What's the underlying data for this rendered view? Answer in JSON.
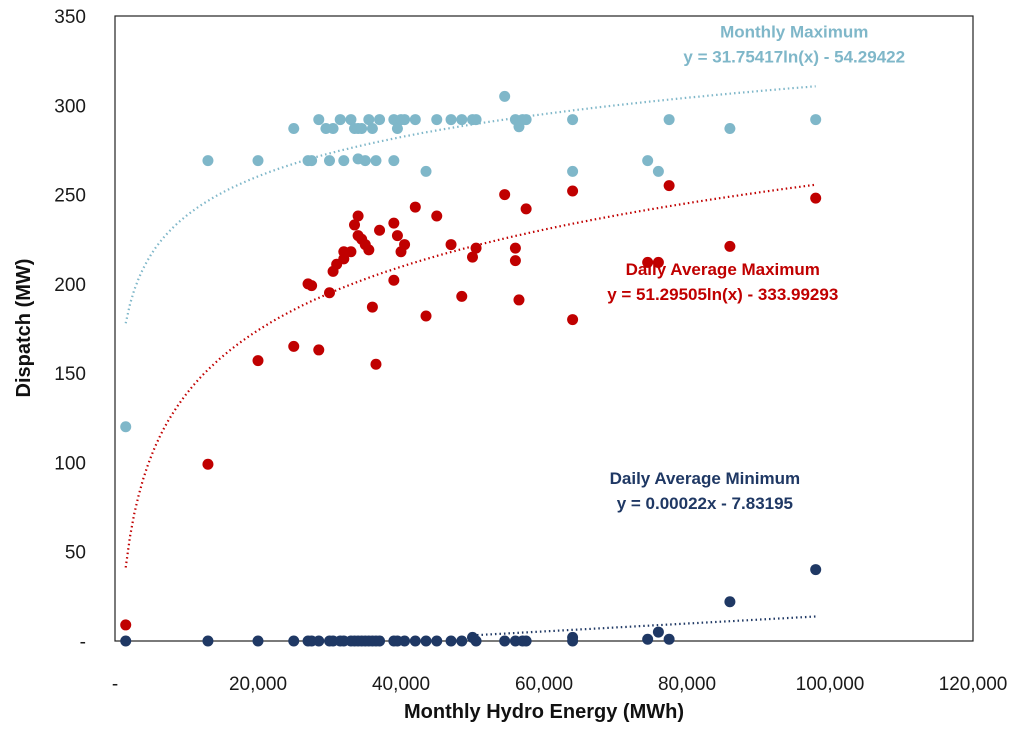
{
  "chart_data": {
    "type": "scatter",
    "xlabel": "Monthly Hydro Energy (MWh)",
    "ylabel": "Dispatch (MW)",
    "xlim": [
      0,
      120000
    ],
    "ylim": [
      0,
      350
    ],
    "x_ticks": [
      {
        "value": 0,
        "label": "-"
      },
      {
        "value": 20000,
        "label": "20,000"
      },
      {
        "value": 40000,
        "label": "40,000"
      },
      {
        "value": 60000,
        "label": "60,000"
      },
      {
        "value": 80000,
        "label": "80,000"
      },
      {
        "value": 100000,
        "label": "100,000"
      },
      {
        "value": 120000,
        "label": "120,000"
      }
    ],
    "y_ticks": [
      {
        "value": 0,
        "label": "-"
      },
      {
        "value": 50,
        "label": "50"
      },
      {
        "value": 100,
        "label": "100"
      },
      {
        "value": 150,
        "label": "150"
      },
      {
        "value": 200,
        "label": "200"
      },
      {
        "value": 250,
        "label": "250"
      },
      {
        "value": 300,
        "label": "300"
      },
      {
        "value": 350,
        "label": "350"
      }
    ],
    "grid": false,
    "legend": "none",
    "series": [
      {
        "color": "#7fb7c9",
        "points": [
          [
            1500,
            120
          ],
          [
            13000,
            269
          ],
          [
            20000,
            269
          ],
          [
            25000,
            287
          ],
          [
            27000,
            269
          ],
          [
            27500,
            269
          ],
          [
            28500,
            292
          ],
          [
            29500,
            287
          ],
          [
            30000,
            269
          ],
          [
            30500,
            287
          ],
          [
            31500,
            292
          ],
          [
            32000,
            269
          ],
          [
            33000,
            292
          ],
          [
            33500,
            287
          ],
          [
            34000,
            270
          ],
          [
            34000,
            287
          ],
          [
            34500,
            287
          ],
          [
            35000,
            269
          ],
          [
            35500,
            292
          ],
          [
            36000,
            287
          ],
          [
            36500,
            269
          ],
          [
            37000,
            292
          ],
          [
            39000,
            269
          ],
          [
            39000,
            292
          ],
          [
            39500,
            287
          ],
          [
            40000,
            292
          ],
          [
            40500,
            292
          ],
          [
            42000,
            292
          ],
          [
            43500,
            263
          ],
          [
            45000,
            292
          ],
          [
            47000,
            292
          ],
          [
            48500,
            292
          ],
          [
            50000,
            292
          ],
          [
            50500,
            292
          ],
          [
            54500,
            305
          ],
          [
            56000,
            292
          ],
          [
            56500,
            288
          ],
          [
            57000,
            292
          ],
          [
            57500,
            292
          ],
          [
            64000,
            263
          ],
          [
            64000,
            292
          ],
          [
            74500,
            269
          ],
          [
            76000,
            263
          ],
          [
            77500,
            292
          ],
          [
            86000,
            287
          ],
          [
            98000,
            292
          ]
        ],
        "trendline": {
          "type": "log",
          "a": 31.75417,
          "b": -54.29422,
          "x_from": 1500,
          "x_to": 98000
        },
        "annotation": {
          "label": "Monthly Maximum",
          "equation": "y = 31.75417ln(x) - 54.29422",
          "x": 95000,
          "y": 338
        }
      },
      {
        "color": "#c00000",
        "points": [
          [
            1500,
            9
          ],
          [
            13000,
            99
          ],
          [
            20000,
            157
          ],
          [
            25000,
            165
          ],
          [
            27000,
            200
          ],
          [
            27500,
            199
          ],
          [
            28500,
            163
          ],
          [
            30000,
            195
          ],
          [
            30500,
            207
          ],
          [
            31000,
            211
          ],
          [
            32000,
            218
          ],
          [
            32000,
            214
          ],
          [
            33000,
            218
          ],
          [
            33500,
            233
          ],
          [
            34000,
            227
          ],
          [
            34000,
            238
          ],
          [
            34500,
            225
          ],
          [
            35500,
            219
          ],
          [
            35000,
            222
          ],
          [
            36000,
            187
          ],
          [
            36500,
            155
          ],
          [
            37000,
            230
          ],
          [
            39000,
            202
          ],
          [
            39000,
            234
          ],
          [
            39500,
            227
          ],
          [
            40000,
            218
          ],
          [
            40500,
            222
          ],
          [
            42000,
            243
          ],
          [
            43500,
            182
          ],
          [
            45000,
            238
          ],
          [
            47000,
            222
          ],
          [
            48500,
            193
          ],
          [
            50000,
            215
          ],
          [
            50500,
            220
          ],
          [
            54500,
            250
          ],
          [
            56000,
            220
          ],
          [
            56000,
            213
          ],
          [
            56500,
            191
          ],
          [
            57500,
            242
          ],
          [
            64000,
            180
          ],
          [
            64000,
            252
          ],
          [
            74500,
            212
          ],
          [
            76000,
            212
          ],
          [
            77500,
            255
          ],
          [
            86000,
            221
          ],
          [
            98000,
            248
          ]
        ],
        "trendline": {
          "type": "log",
          "a": 51.29505,
          "b": -333.99293,
          "x_from": 1500,
          "x_to": 98000
        },
        "annotation": {
          "label": "Daily Average Maximum",
          "equation": "y = 51.29505ln(x) - 333.99293",
          "x": 85000,
          "y": 205
        }
      },
      {
        "color": "#1f3864",
        "points": [
          [
            1500,
            0
          ],
          [
            13000,
            0
          ],
          [
            20000,
            0
          ],
          [
            25000,
            0
          ],
          [
            27000,
            0
          ],
          [
            27500,
            0
          ],
          [
            28500,
            0
          ],
          [
            30000,
            0
          ],
          [
            30500,
            0
          ],
          [
            31500,
            0
          ],
          [
            32000,
            0
          ],
          [
            33000,
            0
          ],
          [
            33500,
            0
          ],
          [
            34000,
            0
          ],
          [
            34500,
            0
          ],
          [
            35000,
            0
          ],
          [
            35500,
            0
          ],
          [
            36000,
            0
          ],
          [
            36500,
            0
          ],
          [
            37000,
            0
          ],
          [
            39000,
            0
          ],
          [
            39500,
            0
          ],
          [
            40500,
            0
          ],
          [
            42000,
            0
          ],
          [
            43500,
            0
          ],
          [
            45000,
            0
          ],
          [
            47000,
            0
          ],
          [
            48500,
            0
          ],
          [
            50000,
            2
          ],
          [
            50500,
            0
          ],
          [
            54500,
            0
          ],
          [
            56000,
            0
          ],
          [
            57000,
            0
          ],
          [
            57500,
            0
          ],
          [
            64000,
            2
          ],
          [
            64000,
            0
          ],
          [
            74500,
            1
          ],
          [
            76000,
            5
          ],
          [
            77500,
            1
          ],
          [
            86000,
            22
          ],
          [
            98000,
            40
          ]
        ],
        "trendline": {
          "type": "linear",
          "a": 0.00022,
          "b": -7.83195,
          "x_from": 50000,
          "x_to": 98000
        },
        "annotation": {
          "label": "Daily Average Minimum",
          "equation": "y = 0.00022x - 7.83195",
          "x": 82500,
          "y": 88
        }
      }
    ]
  }
}
